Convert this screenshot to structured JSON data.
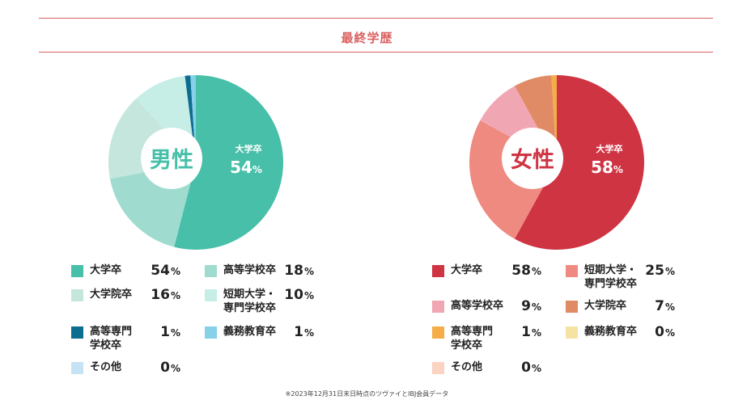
{
  "title": "最終学歴",
  "note": "※2023年12月31日末日時点のツヴァイとIBJ会員データ",
  "chart_data": [
    {
      "type": "pie",
      "title": "男性",
      "center_label": "大学卒",
      "center_value": "54",
      "unit": "%",
      "slices": [
        {
          "label": "大学卒",
          "value": 54,
          "color": "#47bfa9"
        },
        {
          "label": "高等学校卒",
          "value": 18,
          "color": "#9fdccf"
        },
        {
          "label": "大学院卒",
          "value": 16,
          "color": "#c4e6dc"
        },
        {
          "label": "短期大学・\n専門学校卒",
          "value": 10,
          "color": "#c6eee7"
        },
        {
          "label": "高等専門\n学校卒",
          "value": 1,
          "color": "#0d6d8f"
        },
        {
          "label": "義務教育卒",
          "value": 1,
          "color": "#86d0e8"
        },
        {
          "label": "その他",
          "value": 0,
          "color": "#c5e3f5"
        }
      ],
      "legend_order": [
        "大学卒",
        "高等学校卒",
        "大学院卒",
        "短期大学・\n専門学校卒",
        "高等専門\n学校卒",
        "義務教育卒",
        "その他"
      ]
    },
    {
      "type": "pie",
      "title": "女性",
      "center_label": "大学卒",
      "center_value": "58",
      "unit": "%",
      "slices": [
        {
          "label": "大学卒",
          "value": 58,
          "color": "#cf3443"
        },
        {
          "label": "短期大学・\n専門学校卒",
          "value": 25,
          "color": "#ee8a80"
        },
        {
          "label": "高等学校卒",
          "value": 9,
          "color": "#f1a7b3"
        },
        {
          "label": "大学院卒",
          "value": 7,
          "color": "#e08a66"
        },
        {
          "label": "高等専門\n学校卒",
          "value": 1,
          "color": "#f4ad48"
        },
        {
          "label": "義務教育卒",
          "value": 0,
          "color": "#f4e3a3"
        },
        {
          "label": "その他",
          "value": 0,
          "color": "#fad3c3"
        }
      ],
      "legend_order": [
        "大学卒",
        "短期大学・\n専門学校卒",
        "高等学校卒",
        "大学院卒",
        "高等専門\n学校卒",
        "義務教育卒",
        "その他"
      ]
    }
  ]
}
